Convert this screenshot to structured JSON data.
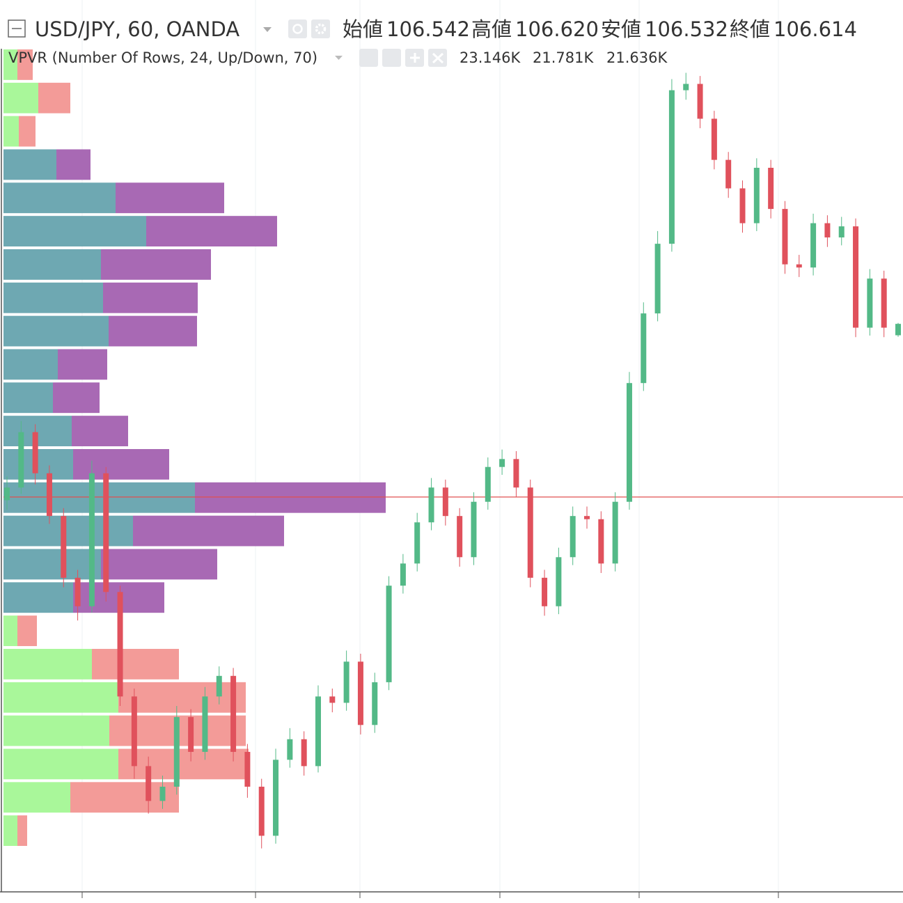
{
  "header": {
    "symbol": "USD/JPY, 60, OANDA",
    "ohlc": [
      {
        "label": "始値",
        "value": "106.542"
      },
      {
        "label": "高値",
        "value": "106.620"
      },
      {
        "label": "安値",
        "value": "106.532"
      },
      {
        "label": "終値",
        "value": "106.614"
      }
    ],
    "value_color": "#53b987"
  },
  "indicator": {
    "title": "VPVR (Number Of Rows, 24, Up/Down, 70)",
    "values": [
      {
        "text": "23.146K",
        "color": "#47e847"
      },
      {
        "text": "21.781K",
        "color": "#e02828"
      },
      {
        "text": "21.636K",
        "color": "#1f1fe6"
      }
    ]
  },
  "chart_data": [
    {
      "type": "candlestick",
      "categories": [
        null,
        null,
        null,
        null,
        null,
        null,
        null,
        null,
        null,
        null,
        null,
        null,
        null,
        null,
        null,
        null,
        null,
        null,
        null,
        null,
        null,
        null,
        null,
        null,
        null,
        null,
        null,
        null,
        null,
        null,
        null,
        null,
        null,
        null,
        null,
        null,
        null,
        null,
        null,
        null,
        null,
        null,
        null,
        null,
        null,
        null,
        null,
        null,
        null,
        null,
        null,
        null,
        null,
        null,
        null,
        null,
        null,
        null,
        null,
        null,
        null,
        null,
        null,
        null
      ],
      "open": [
        105.5,
        105.58,
        105.93,
        105.67,
        105.4,
        105.01,
        104.83,
        105.67,
        104.92,
        104.26,
        103.82,
        103.6,
        103.69,
        104.13,
        103.91,
        104.26,
        104.39,
        103.91,
        103.69,
        103.38,
        103.86,
        103.99,
        103.82,
        104.26,
        104.22,
        104.48,
        104.08,
        104.35,
        104.96,
        105.1,
        105.36,
        105.58,
        105.4,
        105.14,
        105.49,
        105.71,
        105.76,
        105.58,
        105.01,
        104.83,
        105.14,
        105.4,
        105.38,
        105.1,
        105.49,
        106.24,
        106.68,
        107.12,
        108.09,
        108.13,
        107.91,
        107.65,
        107.47,
        107.25,
        107.6,
        107.34,
        106.99,
        106.97,
        107.25,
        107.16,
        107.23,
        106.59,
        106.9,
        106.542
      ],
      "high": [
        105.65,
        106.0,
        105.98,
        105.72,
        105.45,
        105.06,
        105.75,
        105.71,
        104.96,
        104.31,
        103.88,
        103.76,
        104.2,
        104.18,
        104.32,
        104.45,
        104.44,
        103.96,
        103.74,
        103.93,
        104.06,
        104.04,
        104.33,
        104.31,
        104.55,
        104.53,
        104.41,
        105.02,
        105.16,
        105.42,
        105.64,
        105.63,
        105.45,
        105.55,
        105.77,
        105.82,
        105.81,
        105.63,
        105.06,
        105.2,
        105.46,
        105.46,
        105.43,
        105.55,
        106.31,
        106.75,
        107.2,
        108.16,
        108.2,
        108.18,
        107.96,
        107.7,
        107.52,
        107.66,
        107.65,
        107.39,
        107.05,
        107.31,
        107.3,
        107.29,
        107.28,
        106.96,
        106.95,
        106.62
      ],
      "low": [
        105.44,
        105.54,
        105.6,
        105.35,
        104.95,
        104.74,
        104.79,
        104.86,
        104.2,
        103.74,
        103.52,
        103.55,
        103.64,
        103.85,
        103.86,
        104.21,
        103.85,
        103.62,
        103.3,
        103.33,
        103.81,
        103.76,
        103.78,
        104.16,
        104.17,
        104.02,
        104.03,
        104.3,
        104.91,
        105.05,
        105.31,
        105.34,
        105.08,
        105.09,
        105.44,
        105.66,
        105.52,
        104.95,
        104.77,
        104.78,
        105.09,
        105.32,
        105.04,
        105.05,
        105.44,
        106.19,
        106.63,
        107.07,
        108.03,
        107.85,
        107.59,
        107.41,
        107.19,
        107.2,
        107.28,
        106.93,
        106.91,
        106.92,
        107.1,
        107.11,
        106.53,
        106.54,
        106.53,
        106.532
      ],
      "close": [
        105.58,
        105.93,
        105.67,
        105.4,
        105.01,
        104.83,
        105.67,
        104.92,
        104.26,
        103.82,
        103.6,
        103.69,
        104.13,
        103.91,
        104.26,
        104.39,
        103.91,
        103.69,
        103.38,
        103.86,
        103.99,
        103.82,
        104.26,
        104.22,
        104.48,
        104.08,
        104.35,
        104.96,
        105.1,
        105.36,
        105.58,
        105.4,
        105.14,
        105.49,
        105.71,
        105.76,
        105.58,
        105.01,
        104.83,
        105.14,
        105.4,
        105.38,
        105.1,
        105.49,
        106.24,
        106.68,
        107.12,
        108.09,
        108.13,
        107.91,
        107.65,
        107.47,
        107.25,
        107.6,
        107.34,
        106.99,
        106.97,
        107.25,
        107.16,
        107.23,
        106.59,
        106.9,
        106.59,
        106.614
      ],
      "up_color": "#53b987",
      "down_color": "#e0515c",
      "ylim": [
        103.03,
        108.66
      ],
      "poc": 105.52,
      "poc_color": "#e05050"
    },
    {
      "type": "profile",
      "xlim": [
        0,
        1292
      ],
      "in_value_area": [
        false,
        false,
        false,
        true,
        true,
        true,
        true,
        true,
        true,
        true,
        true,
        true,
        true,
        true,
        true,
        true,
        true,
        false,
        false,
        false,
        false,
        false,
        false,
        false
      ],
      "series": [
        {
          "color": "#a9f79a",
          "value_area_color": "#6ea8b2",
          "values": [
            20,
            50,
            22,
            76,
            161,
            205,
            140,
            143,
            151,
            78,
            71,
            98,
            100,
            275,
            186,
            140,
            100,
            20,
            127,
            165,
            152,
            165,
            96,
            20
          ]
        },
        {
          "color": "#f39b98",
          "value_area_color": "#a869b4",
          "values": [
            22,
            46,
            24,
            49,
            156,
            188,
            158,
            136,
            127,
            71,
            67,
            81,
            138,
            274,
            217,
            167,
            131,
            28,
            125,
            183,
            196,
            187,
            156,
            14
          ]
        }
      ]
    }
  ]
}
